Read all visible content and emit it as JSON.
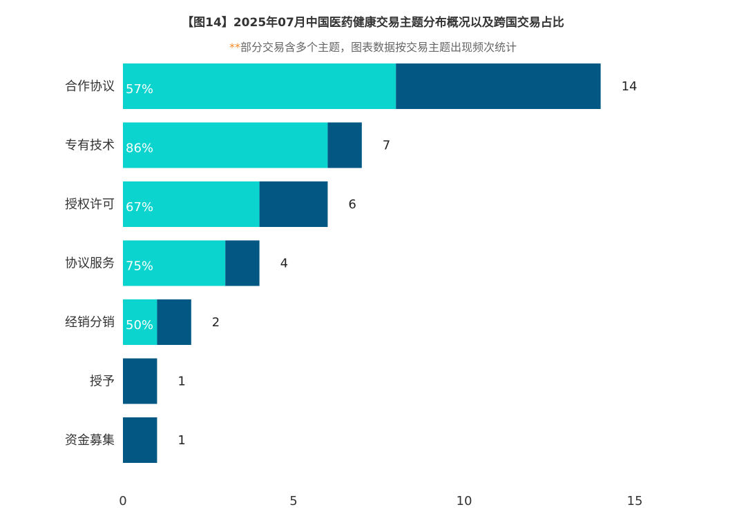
{
  "chart_data": {
    "type": "bar",
    "orientation": "horizontal",
    "stacked": true,
    "title": "【图14】2025年07月中国医药健康交易主题分布概况以及跨国交易占比",
    "subtitle_mark": "**",
    "subtitle": "部分交易含多个主题，图表数据按交易主题出现频次统计",
    "categories": [
      "合作协议",
      "专有技术",
      "授权许可",
      "协议服务",
      "经销分销",
      "授予",
      "资金募集"
    ],
    "totals": [
      14,
      7,
      6,
      4,
      2,
      1,
      1
    ],
    "cross_border_share_labels": [
      "57%",
      "86%",
      "67%",
      "75%",
      "50%",
      "",
      ""
    ],
    "series": [
      {
        "values": [
          8,
          6,
          4,
          3,
          1,
          0,
          0
        ],
        "color": "#0bd3ce"
      },
      {
        "values": [
          6,
          1,
          2,
          1,
          1,
          1,
          1
        ],
        "color": "#035783"
      }
    ],
    "xlim": [
      0,
      15
    ],
    "xticks": [
      0,
      5,
      10,
      15
    ],
    "grid": false,
    "legend": "none"
  }
}
